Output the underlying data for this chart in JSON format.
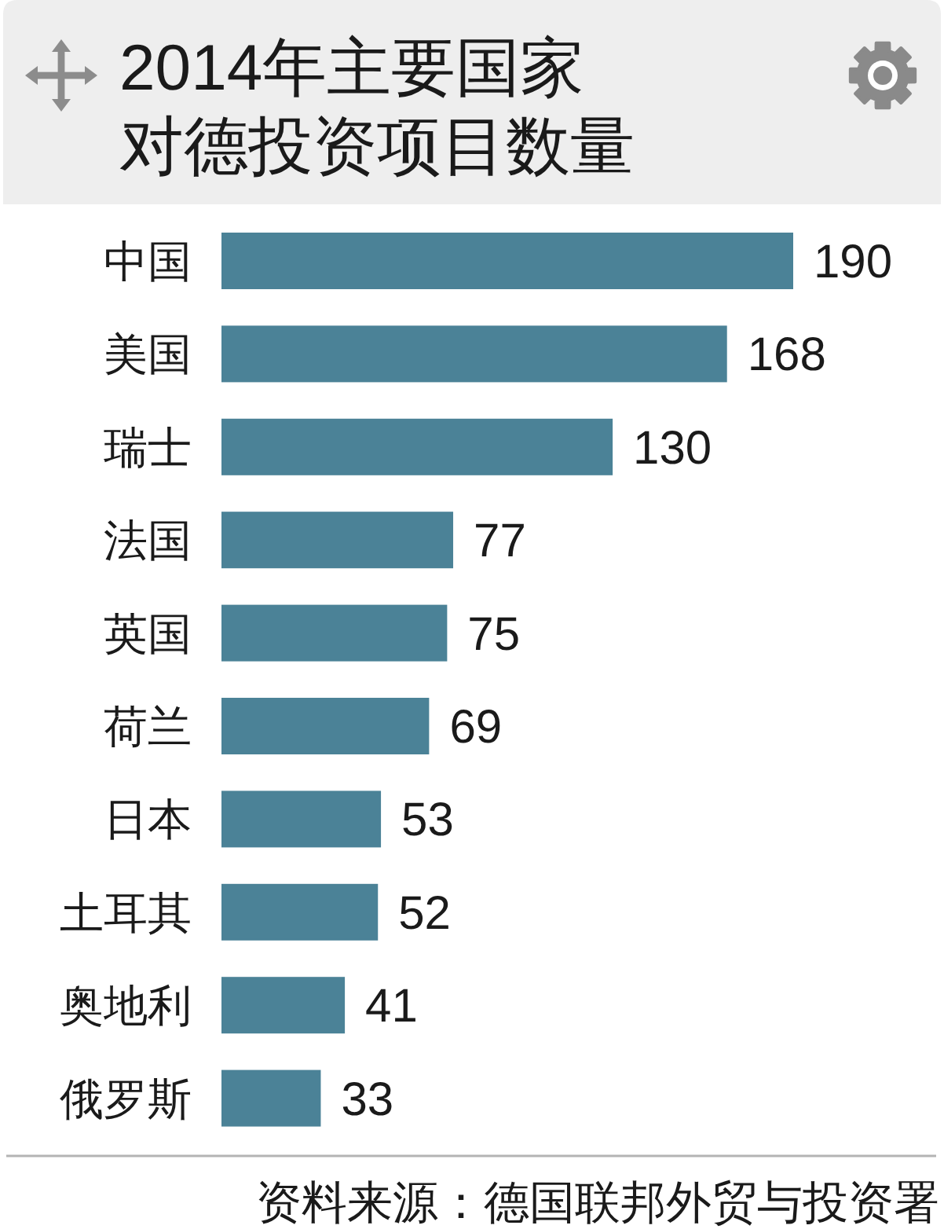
{
  "chart_data": {
    "type": "bar",
    "orientation": "horizontal",
    "title": "2014年主要国家对德投资项目数量",
    "categories": [
      "中国",
      "美国",
      "瑞士",
      "法国",
      "英国",
      "荷兰",
      "日本",
      "土耳其",
      "奥地利",
      "俄罗斯"
    ],
    "values": [
      190,
      168,
      130,
      77,
      75,
      69,
      53,
      52,
      41,
      33
    ],
    "color": "#4b8297",
    "data_labels": true,
    "annotations": [
      "资料来源：德国联邦外贸与投资署"
    ]
  }
}
